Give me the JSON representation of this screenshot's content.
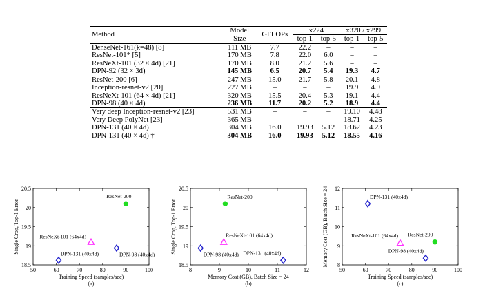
{
  "table": {
    "headers": {
      "method": "Method",
      "model_size_line1": "Model",
      "model_size_line2": "Size",
      "gflops": "GFLOPs",
      "x224": "x224",
      "x320": "x320 / x299",
      "top1": "top-1",
      "top5": "top-5"
    },
    "groups": [
      [
        {
          "method": "DenseNet-161(k=48) [8]",
          "size": "111 MB",
          "gflops": "7.7",
          "t1_224": "22.2",
          "t5_224": "–",
          "t1_320": "–",
          "t5_320": "–",
          "bold": false
        },
        {
          "method": "ResNet-101* [5]",
          "size": "170 MB",
          "gflops": "7.8",
          "t1_224": "22.0",
          "t5_224": "6.0",
          "t1_320": "–",
          "t5_320": "–",
          "bold": false
        },
        {
          "method": "ResNeXt-101 (32 × 4d) [21]",
          "size": "170 MB",
          "gflops": "8.0",
          "t1_224": "21.2",
          "t5_224": "5.6",
          "t1_320": "–",
          "t5_320": "–",
          "bold": false
        },
        {
          "method": "DPN-92 (32 × 3d)",
          "size": "145 MB",
          "gflops": "6.5",
          "t1_224": "20.7",
          "t5_224": "5.4",
          "t1_320": "19.3",
          "t5_320": "4.7",
          "bold": true
        }
      ],
      [
        {
          "method": "ResNet-200 [6]",
          "size": "247 MB",
          "gflops": "15.0",
          "t1_224": "21.7",
          "t5_224": "5.8",
          "t1_320": "20.1",
          "t5_320": "4.8",
          "bold": false
        },
        {
          "method": "Inception-resnet-v2 [20]",
          "size": "227 MB",
          "gflops": "–",
          "t1_224": "–",
          "t5_224": "–",
          "t1_320": "19.9",
          "t5_320": "4.9",
          "bold": false
        },
        {
          "method": "ResNeXt-101 (64 × 4d) [21]",
          "size": "320 MB",
          "gflops": "15.5",
          "t1_224": "20.4",
          "t5_224": "5.3",
          "t1_320": "19.1",
          "t5_320": "4.4",
          "bold": false
        },
        {
          "method": "DPN-98 (40 × 4d)",
          "size": "236 MB",
          "gflops": "11.7",
          "t1_224": "20.2",
          "t5_224": "5.2",
          "t1_320": "18.9",
          "t5_320": "4.4",
          "bold": true
        }
      ],
      [
        {
          "method": "Very deep Inception-resnet-v2 [23]",
          "size": "531 MB",
          "gflops": "–",
          "t1_224": "–",
          "t5_224": "–",
          "t1_320": "19.10",
          "t5_320": "4.48",
          "bold": false
        },
        {
          "method": "Very Deep PolyNet [23]",
          "size": "365 MB",
          "gflops": "–",
          "t1_224": "–",
          "t5_224": "–",
          "t1_320": "18.71",
          "t5_320": "4.25",
          "bold": false
        },
        {
          "method": "DPN-131 (40 × 4d)",
          "size": "304 MB",
          "gflops": "16.0",
          "t1_224": "19.93",
          "t5_224": "5.12",
          "t1_320": "18.62",
          "t5_320": "4.23",
          "bold": false
        },
        {
          "method": "DPN-131 (40 × 4d) †",
          "size": "304 MB",
          "gflops": "16.0",
          "t1_224": "19.93",
          "t5_224": "5.12",
          "t1_320": "18.55",
          "t5_320": "4.16",
          "bold": true
        }
      ]
    ]
  },
  "chart_data": [
    {
      "type": "scatter",
      "caption": "(a)",
      "xlabel": "Training Speed (samples/sec)",
      "ylabel": "Single Crop, Top-1 Error",
      "xlim": [
        50,
        100
      ],
      "ylim": [
        18.5,
        20.5
      ],
      "xticks": [
        50,
        60,
        70,
        80,
        90,
        100
      ],
      "yticks": [
        18.5,
        19,
        19.5,
        20,
        20.5
      ],
      "points": [
        {
          "name": "ResNet-200",
          "x": 90,
          "y": 20.1,
          "marker": "dot",
          "color": "#22dd22",
          "label_pos": "above-left"
        },
        {
          "name": "ResNeXt-101 (64x4d)",
          "x": 75,
          "y": 19.1,
          "marker": "triangle",
          "color": "#ff33ff",
          "label_pos": "left"
        },
        {
          "name": "DPN-131 (40x4d)",
          "x": 61,
          "y": 18.62,
          "marker": "diamond",
          "color": "#2222cc",
          "label_pos": "above-right"
        },
        {
          "name": "DPN-98 (40x4d)",
          "x": 86,
          "y": 18.94,
          "marker": "diamond",
          "color": "#2222cc",
          "label_pos": "below-right"
        }
      ]
    },
    {
      "type": "scatter",
      "caption": "(b)",
      "xlabel": "Memory Cost (GB), Batch Size = 24",
      "ylabel": "Single Crop, Top-1 Error",
      "xlim": [
        8,
        12
      ],
      "ylim": [
        18.5,
        20.5
      ],
      "xticks": [
        8,
        9,
        10,
        11,
        12
      ],
      "yticks": [
        18.5,
        19,
        19.5,
        20,
        20.5
      ],
      "points": [
        {
          "name": "ResNet-200",
          "x": 9.2,
          "y": 20.1,
          "marker": "dot",
          "color": "#22dd22",
          "label_pos": "above-right"
        },
        {
          "name": "ResNeXt-101 (64x4d)",
          "x": 9.15,
          "y": 19.1,
          "marker": "triangle",
          "color": "#ff33ff",
          "label_pos": "above-right"
        },
        {
          "name": "DPN-98 (40x4d)",
          "x": 8.35,
          "y": 18.94,
          "marker": "diamond",
          "color": "#2222cc",
          "label_pos": "below-right"
        },
        {
          "name": "DPN-131 (40x4d)",
          "x": 11.2,
          "y": 18.62,
          "marker": "diamond",
          "color": "#2222cc",
          "label_pos": "above-left"
        }
      ]
    },
    {
      "type": "scatter",
      "caption": "(c)",
      "xlabel": "Training Speed (samples/sec)",
      "ylabel": "Memory Cost (GB), Batch Size = 24",
      "xlim": [
        50,
        100
      ],
      "ylim": [
        8,
        12
      ],
      "xticks": [
        50,
        60,
        70,
        80,
        90,
        100
      ],
      "yticks": [
        8,
        9,
        10,
        11,
        12
      ],
      "points": [
        {
          "name": "DPN-131 (40x4d)",
          "x": 61,
          "y": 11.2,
          "marker": "diamond",
          "color": "#2222cc",
          "label_pos": "above-right"
        },
        {
          "name": "ResNeXt-101 (64x4d)",
          "x": 75,
          "y": 9.15,
          "marker": "triangle",
          "color": "#ff33ff",
          "label_pos": "above-left"
        },
        {
          "name": "ResNet-200",
          "x": 90,
          "y": 9.2,
          "marker": "dot",
          "color": "#22dd22",
          "label_pos": "above-left"
        },
        {
          "name": "DPN-98 (40x4d)",
          "x": 86,
          "y": 8.35,
          "marker": "diamond",
          "color": "#2222cc",
          "label_pos": "above-left"
        }
      ]
    }
  ]
}
